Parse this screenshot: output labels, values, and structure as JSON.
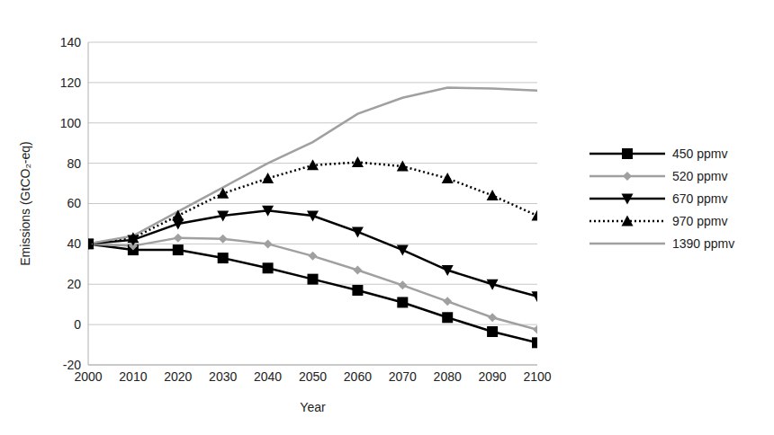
{
  "chart_data": {
    "type": "line",
    "x_label": "Year",
    "y_label": "Emissions (GtCO₂-eq)",
    "x": [
      2000,
      2010,
      2020,
      2030,
      2040,
      2050,
      2060,
      2070,
      2080,
      2090,
      2100
    ],
    "xlim": [
      2000,
      2100
    ],
    "xticks": [
      2000,
      2010,
      2020,
      2030,
      2040,
      2050,
      2060,
      2070,
      2080,
      2090,
      2100
    ],
    "ylim": [
      -20,
      140
    ],
    "yticks": [
      -20,
      0,
      20,
      40,
      60,
      80,
      100,
      120,
      140
    ],
    "grid": true,
    "legend": "right",
    "series": [
      {
        "name": "450 ppmv",
        "color": "#000000",
        "marker": "square",
        "line_style": "solid",
        "values": [
          40,
          37,
          37,
          33,
          28,
          22.5,
          17,
          11,
          3.5,
          -3.5,
          -9
        ]
      },
      {
        "name": "520 ppmv",
        "color": "#a0a0a0",
        "marker": "diamond",
        "line_style": "solid",
        "values": [
          40,
          39,
          43,
          42.5,
          40,
          34,
          27,
          19.5,
          11.5,
          3.5,
          -2.5
        ]
      },
      {
        "name": "670 ppmv",
        "color": "#000000",
        "marker": "triangle-down",
        "line_style": "solid",
        "values": [
          40,
          42,
          50,
          54,
          56.5,
          54,
          46,
          37,
          27,
          20,
          14
        ]
      },
      {
        "name": "970 ppmv",
        "color": "#000000",
        "marker": "triangle-up",
        "line_style": "dotted",
        "values": [
          40,
          43,
          54,
          65,
          72.5,
          79,
          80.5,
          78.5,
          72.5,
          64,
          54
        ]
      },
      {
        "name": "1390 ppmv",
        "color": "#a0a0a0",
        "marker": "none",
        "line_style": "solid",
        "values": [
          40,
          44,
          56,
          68,
          80,
          90.5,
          104.5,
          112.5,
          117.5,
          117,
          116
        ]
      }
    ]
  }
}
